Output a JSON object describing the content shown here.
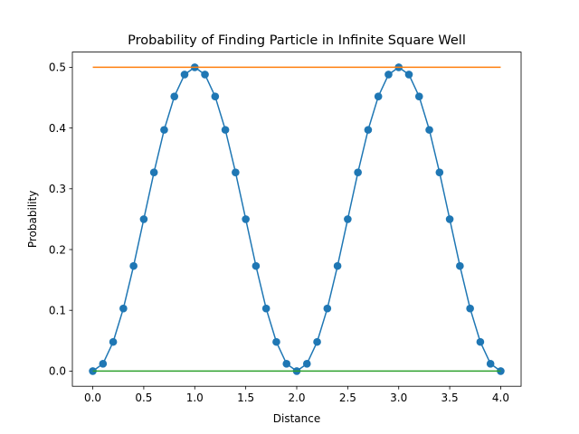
{
  "chart_data": {
    "type": "line",
    "title": "Probability of Finding Particle in Infinite Square Well",
    "xlabel": "Distance",
    "ylabel": "Probability",
    "xlim": [
      -0.2,
      4.2
    ],
    "ylim": [
      -0.025,
      0.525
    ],
    "xticks": [
      0.0,
      0.5,
      1.0,
      1.5,
      2.0,
      2.5,
      3.0,
      3.5,
      4.0
    ],
    "xtick_labels": [
      "0.0",
      "0.5",
      "1.0",
      "1.5",
      "2.0",
      "2.5",
      "3.0",
      "3.5",
      "4.0"
    ],
    "yticks": [
      0.0,
      0.1,
      0.2,
      0.3,
      0.4,
      0.5
    ],
    "ytick_labels": [
      "0.0",
      "0.1",
      "0.2",
      "0.3",
      "0.4",
      "0.5"
    ],
    "grid": false,
    "legend": "none",
    "series": [
      {
        "color": "#1f77b4",
        "marker": "circle",
        "x": [
          0.0,
          0.1,
          0.2,
          0.3,
          0.4,
          0.5,
          0.6,
          0.7,
          0.8,
          0.9,
          1.0,
          1.1,
          1.2,
          1.3,
          1.4,
          1.5,
          1.6,
          1.7,
          1.8,
          1.9,
          2.0,
          2.1,
          2.2,
          2.3,
          2.4,
          2.5,
          2.6,
          2.7,
          2.8,
          2.9,
          3.0,
          3.1,
          3.2,
          3.3,
          3.4,
          3.5,
          3.6,
          3.7,
          3.8,
          3.9,
          4.0
        ],
        "y": [
          0.0,
          0.012,
          0.048,
          0.103,
          0.173,
          0.25,
          0.327,
          0.397,
          0.452,
          0.488,
          0.5,
          0.488,
          0.452,
          0.397,
          0.327,
          0.25,
          0.173,
          0.103,
          0.048,
          0.012,
          0.0,
          0.012,
          0.048,
          0.103,
          0.173,
          0.25,
          0.327,
          0.397,
          0.452,
          0.488,
          0.5,
          0.488,
          0.452,
          0.397,
          0.327,
          0.25,
          0.173,
          0.103,
          0.048,
          0.012,
          0.0
        ]
      },
      {
        "color": "#ff7f0e",
        "marker": "none",
        "x": [
          0.0,
          4.0
        ],
        "y": [
          0.5,
          0.5
        ]
      },
      {
        "color": "#2ca02c",
        "marker": "none",
        "x": [
          0.0,
          4.0
        ],
        "y": [
          0.0,
          0.0
        ]
      }
    ]
  }
}
